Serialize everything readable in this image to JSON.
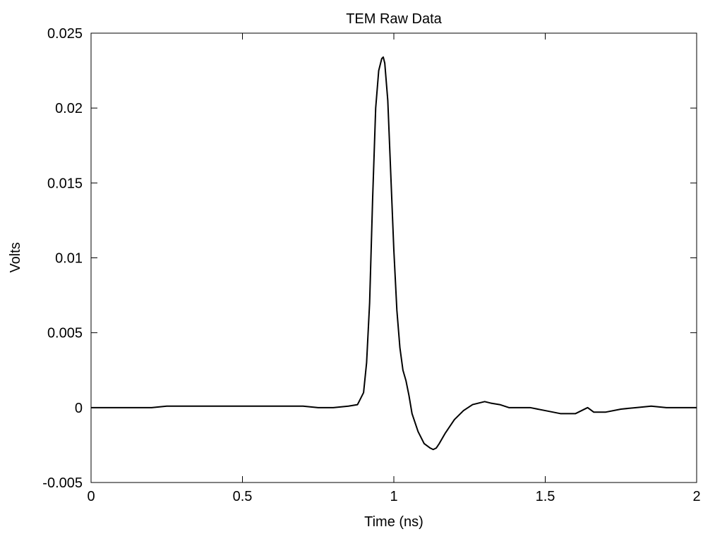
{
  "chart_data": {
    "type": "line",
    "title": "TEM Raw Data",
    "xlabel": "Time (ns)",
    "ylabel": "Volts",
    "xlim": [
      0,
      2
    ],
    "ylim": [
      -0.005,
      0.025
    ],
    "xticks": [
      0,
      0.5,
      1,
      1.5,
      2
    ],
    "xtick_labels": [
      "0",
      "0.5",
      "1",
      "1.5",
      "2"
    ],
    "yticks": [
      -0.005,
      0,
      0.005,
      0.01,
      0.015,
      0.02,
      0.025
    ],
    "ytick_labels": [
      "-0.005",
      "0",
      "0.005",
      "0.01",
      "0.015",
      "0.02",
      "0.025"
    ],
    "grid": false,
    "legend": "none",
    "line_color": "#000000",
    "series": [
      {
        "x": [
          0.0,
          0.05,
          0.1,
          0.15,
          0.2,
          0.25,
          0.3,
          0.35,
          0.4,
          0.45,
          0.5,
          0.55,
          0.6,
          0.65,
          0.7,
          0.75,
          0.8,
          0.85,
          0.88,
          0.9,
          0.91,
          0.92,
          0.93,
          0.94,
          0.95,
          0.96,
          0.965,
          0.97,
          0.98,
          0.99,
          1.0,
          1.01,
          1.02,
          1.03,
          1.04,
          1.05,
          1.06,
          1.08,
          1.1,
          1.12,
          1.13,
          1.14,
          1.15,
          1.17,
          1.2,
          1.23,
          1.26,
          1.28,
          1.3,
          1.32,
          1.35,
          1.38,
          1.4,
          1.45,
          1.5,
          1.55,
          1.58,
          1.6,
          1.62,
          1.64,
          1.66,
          1.7,
          1.75,
          1.8,
          1.85,
          1.9,
          1.95,
          2.0
        ],
        "y": [
          0.0,
          0.0,
          0.0,
          0.0,
          0.0,
          0.0001,
          0.0001,
          0.0001,
          0.0001,
          0.0001,
          0.0001,
          0.0001,
          0.0001,
          0.0001,
          0.0001,
          0.0,
          0.0,
          0.0001,
          0.0002,
          0.001,
          0.003,
          0.007,
          0.014,
          0.02,
          0.0225,
          0.0233,
          0.0234,
          0.023,
          0.0205,
          0.0155,
          0.0105,
          0.0065,
          0.004,
          0.0025,
          0.0018,
          0.0008,
          -0.0004,
          -0.0016,
          -0.0024,
          -0.0027,
          -0.0028,
          -0.0027,
          -0.0024,
          -0.0017,
          -0.0008,
          -0.0002,
          0.0002,
          0.0003,
          0.0004,
          0.0003,
          0.0002,
          0.0,
          0.0,
          0.0,
          -0.0002,
          -0.0004,
          -0.0004,
          -0.0004,
          -0.0002,
          0.0,
          -0.0003,
          -0.0003,
          -0.0001,
          0.0,
          0.0001,
          0.0,
          0.0,
          0.0
        ]
      }
    ]
  }
}
